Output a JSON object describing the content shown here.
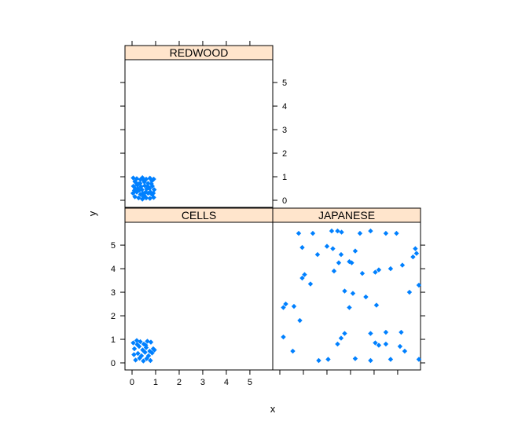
{
  "chart_data": {
    "type": "scatter",
    "layout": "lattice-conditioned-panels",
    "xlabel": "x",
    "ylabel": "y",
    "xlim": [
      -0.3,
      5.97
    ],
    "ylim": [
      -0.3,
      5.97
    ],
    "ticks": [
      0,
      1,
      2,
      3,
      4,
      5
    ],
    "tick_labels": [
      "0",
      "1",
      "2",
      "3",
      "4",
      "5"
    ],
    "point_color": "#0080ff",
    "strip_color": "#ffe5cc",
    "grid": false,
    "panels": [
      {
        "name": "REDWOOD",
        "position": "top-left",
        "points": [
          [
            0.05,
            0.95
          ],
          [
            0.12,
            0.8
          ],
          [
            0.2,
            0.92
          ],
          [
            0.28,
            0.7
          ],
          [
            0.36,
            0.88
          ],
          [
            0.44,
            0.96
          ],
          [
            0.52,
            0.78
          ],
          [
            0.6,
            0.9
          ],
          [
            0.68,
            0.72
          ],
          [
            0.76,
            0.94
          ],
          [
            0.84,
            0.82
          ],
          [
            0.92,
            0.9
          ],
          [
            0.06,
            0.6
          ],
          [
            0.14,
            0.5
          ],
          [
            0.22,
            0.65
          ],
          [
            0.3,
            0.42
          ],
          [
            0.38,
            0.58
          ],
          [
            0.46,
            0.3
          ],
          [
            0.54,
            0.62
          ],
          [
            0.62,
            0.48
          ],
          [
            0.7,
            0.55
          ],
          [
            0.78,
            0.35
          ],
          [
            0.86,
            0.6
          ],
          [
            0.94,
            0.45
          ],
          [
            0.04,
            0.3
          ],
          [
            0.12,
            0.15
          ],
          [
            0.2,
            0.35
          ],
          [
            0.28,
            0.1
          ],
          [
            0.36,
            0.25
          ],
          [
            0.44,
            0.05
          ],
          [
            0.52,
            0.2
          ],
          [
            0.6,
            0.1
          ],
          [
            0.68,
            0.3
          ],
          [
            0.76,
            0.08
          ],
          [
            0.84,
            0.25
          ],
          [
            0.92,
            0.12
          ],
          [
            0.16,
            0.75
          ],
          [
            0.34,
            0.72
          ],
          [
            0.5,
            0.85
          ],
          [
            0.66,
            0.6
          ],
          [
            0.82,
            0.7
          ],
          [
            0.25,
            0.5
          ],
          [
            0.42,
            0.45
          ],
          [
            0.58,
            0.35
          ],
          [
            0.74,
            0.5
          ],
          [
            0.9,
            0.3
          ],
          [
            0.1,
            0.42
          ],
          [
            0.48,
            0.15
          ]
        ]
      },
      {
        "name": "CELLS",
        "position": "bottom-left",
        "points": [
          [
            0.05,
            0.85
          ],
          [
            0.2,
            0.95
          ],
          [
            0.35,
            0.9
          ],
          [
            0.5,
            0.8
          ],
          [
            0.65,
            0.92
          ],
          [
            0.8,
            0.88
          ],
          [
            0.1,
            0.6
          ],
          [
            0.3,
            0.7
          ],
          [
            0.45,
            0.55
          ],
          [
            0.6,
            0.65
          ],
          [
            0.75,
            0.5
          ],
          [
            0.9,
            0.6
          ],
          [
            0.08,
            0.35
          ],
          [
            0.25,
            0.4
          ],
          [
            0.4,
            0.3
          ],
          [
            0.55,
            0.45
          ],
          [
            0.7,
            0.3
          ],
          [
            0.85,
            0.42
          ],
          [
            0.15,
            0.12
          ],
          [
            0.32,
            0.2
          ],
          [
            0.48,
            0.08
          ],
          [
            0.62,
            0.18
          ],
          [
            0.78,
            0.1
          ],
          [
            0.95,
            0.55
          ],
          [
            0.22,
            0.78
          ],
          [
            0.58,
            0.75
          ]
        ]
      },
      {
        "name": "JAPANESE",
        "position": "bottom-right",
        "points": [
          [
            0.8,
            5.5
          ],
          [
            1.4,
            5.5
          ],
          [
            2.2,
            5.6
          ],
          [
            2.45,
            5.6
          ],
          [
            2.62,
            5.55
          ],
          [
            3.4,
            5.5
          ],
          [
            3.85,
            5.6
          ],
          [
            4.5,
            5.5
          ],
          [
            4.95,
            5.5
          ],
          [
            0.95,
            4.9
          ],
          [
            1.6,
            4.6
          ],
          [
            2.0,
            4.95
          ],
          [
            2.25,
            4.85
          ],
          [
            2.6,
            4.6
          ],
          [
            3.2,
            4.75
          ],
          [
            5.75,
            4.85
          ],
          [
            5.8,
            4.65
          ],
          [
            2.5,
            4.25
          ],
          [
            2.95,
            4.3
          ],
          [
            3.05,
            4.25
          ],
          [
            3.5,
            3.8
          ],
          [
            4.05,
            3.85
          ],
          [
            4.2,
            3.95
          ],
          [
            4.7,
            4.0
          ],
          [
            5.2,
            4.15
          ],
          [
            5.65,
            4.5
          ],
          [
            0.95,
            3.6
          ],
          [
            1.05,
            3.75
          ],
          [
            1.3,
            3.35
          ],
          [
            2.3,
            3.9
          ],
          [
            2.75,
            3.05
          ],
          [
            3.1,
            2.95
          ],
          [
            3.65,
            2.8
          ],
          [
            5.5,
            3.0
          ],
          [
            5.9,
            3.3
          ],
          [
            0.15,
            2.35
          ],
          [
            0.25,
            2.5
          ],
          [
            0.6,
            2.4
          ],
          [
            0.85,
            1.8
          ],
          [
            2.95,
            2.35
          ],
          [
            4.1,
            2.45
          ],
          [
            0.15,
            1.1
          ],
          [
            0.55,
            0.5
          ],
          [
            2.45,
            0.8
          ],
          [
            2.6,
            1.05
          ],
          [
            2.75,
            1.25
          ],
          [
            3.85,
            1.25
          ],
          [
            4.05,
            0.85
          ],
          [
            4.2,
            0.75
          ],
          [
            4.5,
            1.3
          ],
          [
            5.15,
            1.3
          ],
          [
            1.65,
            0.1
          ],
          [
            2.05,
            0.15
          ],
          [
            3.2,
            0.18
          ],
          [
            3.85,
            0.1
          ],
          [
            4.7,
            0.15
          ],
          [
            5.1,
            0.7
          ],
          [
            5.3,
            0.5
          ],
          [
            5.9,
            0.15
          ],
          [
            4.5,
            0.8
          ]
        ]
      }
    ]
  }
}
